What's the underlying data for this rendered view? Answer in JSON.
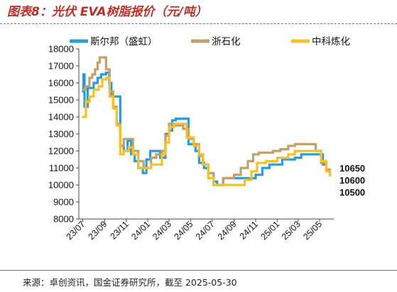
{
  "figure": {
    "title": "图表8：光伏 EVA树脂报价（元/吨）",
    "source": "来源：卓创资讯，国金证券研究所，截至 2025-05-30"
  },
  "chart_data": {
    "type": "line",
    "title": "图表8：光伏 EVA树脂报价（元/吨）",
    "xlabel": "",
    "ylabel": "",
    "ylim": [
      8000,
      18000
    ],
    "y_ticks": [
      8000,
      9000,
      10000,
      11000,
      12000,
      13000,
      14000,
      15000,
      16000,
      17000,
      18000
    ],
    "x_ticks": [
      "23/07",
      "23/09",
      "23/11",
      "24/01",
      "24/03",
      "24/05",
      "24/07",
      "24/09",
      "24/11",
      "25/01",
      "25/03",
      "25/05"
    ],
    "x_range": [
      "2023-06-20",
      "2025-06-10"
    ],
    "legend_position": "top",
    "grid": false,
    "step": true,
    "series": [
      {
        "name": "斯尔邦（盛虹）",
        "color": "#2E9BD6",
        "points": [
          [
            "2023-06-29",
            15500
          ],
          [
            "2023-07-03",
            16500
          ],
          [
            "2023-07-06",
            14600
          ],
          [
            "2023-07-12",
            14600
          ],
          [
            "2023-07-15",
            15700
          ],
          [
            "2023-08-01",
            16000
          ],
          [
            "2023-08-12",
            16300
          ],
          [
            "2023-08-22",
            16500
          ],
          [
            "2023-09-05",
            16600
          ],
          [
            "2023-09-14",
            16000
          ],
          [
            "2023-09-20",
            15200
          ],
          [
            "2023-10-15",
            12300
          ],
          [
            "2023-10-25",
            12000
          ],
          [
            "2023-11-05",
            12600
          ],
          [
            "2023-11-15",
            11800
          ],
          [
            "2023-11-25",
            11400
          ],
          [
            "2023-12-05",
            11000
          ],
          [
            "2023-12-18",
            10700
          ],
          [
            "2023-12-28",
            11500
          ],
          [
            "2024-01-08",
            12000
          ],
          [
            "2024-02-05",
            11600
          ],
          [
            "2024-02-20",
            13000
          ],
          [
            "2024-03-01",
            13200
          ],
          [
            "2024-03-10",
            13800
          ],
          [
            "2024-03-20",
            13900
          ],
          [
            "2024-04-25",
            12400
          ],
          [
            "2024-05-15",
            12000
          ],
          [
            "2024-05-25",
            11300
          ],
          [
            "2024-06-08",
            11000
          ],
          [
            "2024-06-20",
            10700
          ],
          [
            "2024-07-05",
            10200
          ],
          [
            "2024-07-15",
            10000
          ],
          [
            "2024-08-01",
            10400
          ],
          [
            "2024-11-01",
            10600
          ],
          [
            "2024-11-20",
            11000
          ],
          [
            "2024-12-10",
            11200
          ],
          [
            "2025-01-15",
            11500
          ],
          [
            "2025-02-20",
            11600
          ],
          [
            "2025-03-10",
            11800
          ],
          [
            "2025-04-15",
            11800
          ],
          [
            "2025-05-10",
            11200
          ],
          [
            "2025-05-20",
            10900
          ],
          [
            "2025-05-30",
            10650
          ]
        ]
      },
      {
        "name": "浙石化",
        "color": "#C0A06B",
        "points": [
          [
            "2023-06-29",
            15600
          ],
          [
            "2023-07-08",
            15800
          ],
          [
            "2023-07-20",
            16300
          ],
          [
            "2023-07-28",
            16500
          ],
          [
            "2023-08-05",
            16800
          ],
          [
            "2023-08-12",
            17200
          ],
          [
            "2023-08-18",
            17500
          ],
          [
            "2023-09-05",
            16800
          ],
          [
            "2023-09-15",
            15500
          ],
          [
            "2023-09-25",
            14600
          ],
          [
            "2023-10-05",
            13600
          ],
          [
            "2023-10-15",
            12300
          ],
          [
            "2023-10-25",
            12700
          ],
          [
            "2023-11-10",
            12700
          ],
          [
            "2023-11-20",
            12000
          ],
          [
            "2023-12-05",
            11400
          ],
          [
            "2023-12-20",
            11000
          ],
          [
            "2024-01-10",
            11600
          ],
          [
            "2024-01-25",
            11800
          ],
          [
            "2024-02-10",
            12000
          ],
          [
            "2024-02-20",
            12900
          ],
          [
            "2024-03-01",
            13600
          ],
          [
            "2024-03-15",
            13500
          ],
          [
            "2024-04-10",
            13300
          ],
          [
            "2024-04-25",
            12700
          ],
          [
            "2024-05-10",
            12400
          ],
          [
            "2024-05-25",
            11700
          ],
          [
            "2024-06-05",
            11200
          ],
          [
            "2024-06-20",
            10700
          ],
          [
            "2024-07-05",
            10000
          ],
          [
            "2024-08-01",
            10400
          ],
          [
            "2024-09-01",
            10600
          ],
          [
            "2024-09-20",
            11000
          ],
          [
            "2024-10-10",
            11400
          ],
          [
            "2024-10-25",
            11800
          ],
          [
            "2024-11-10",
            11900
          ],
          [
            "2024-12-20",
            12000
          ],
          [
            "2025-01-10",
            12100
          ],
          [
            "2025-02-01",
            12300
          ],
          [
            "2025-02-20",
            12400
          ],
          [
            "2025-04-10",
            12400
          ],
          [
            "2025-04-20",
            12000
          ],
          [
            "2025-05-05",
            11300
          ],
          [
            "2025-05-20",
            10900
          ],
          [
            "2025-05-30",
            10600
          ]
        ]
      },
      {
        "name": "中科炼化",
        "color": "#F5C028",
        "points": [
          [
            "2023-06-29",
            14000
          ],
          [
            "2023-07-10",
            14900
          ],
          [
            "2023-07-20",
            15200
          ],
          [
            "2023-08-01",
            15600
          ],
          [
            "2023-08-15",
            15800
          ],
          [
            "2023-08-25",
            16200
          ],
          [
            "2023-09-05",
            16300
          ],
          [
            "2023-09-15",
            15200
          ],
          [
            "2023-09-25",
            14500
          ],
          [
            "2023-10-05",
            13500
          ],
          [
            "2023-10-15",
            11800
          ],
          [
            "2023-10-25",
            12000
          ],
          [
            "2023-11-08",
            12200
          ],
          [
            "2023-11-20",
            11800
          ],
          [
            "2023-12-05",
            11000
          ],
          [
            "2024-01-10",
            11200
          ],
          [
            "2024-02-10",
            11800
          ],
          [
            "2024-02-20",
            12500
          ],
          [
            "2024-03-01",
            13400
          ],
          [
            "2024-03-15",
            13600
          ],
          [
            "2024-04-20",
            12800
          ],
          [
            "2024-05-10",
            12300
          ],
          [
            "2024-05-25",
            11800
          ],
          [
            "2024-06-05",
            11200
          ],
          [
            "2024-06-20",
            10400
          ],
          [
            "2024-07-05",
            10000
          ],
          [
            "2024-10-01",
            10300
          ],
          [
            "2024-10-20",
            10800
          ],
          [
            "2024-11-05",
            11300
          ],
          [
            "2024-12-01",
            11400
          ],
          [
            "2025-01-01",
            11600
          ],
          [
            "2025-02-01",
            11800
          ],
          [
            "2025-02-20",
            12000
          ],
          [
            "2025-04-20",
            12000
          ],
          [
            "2025-05-05",
            11400
          ],
          [
            "2025-05-20",
            10800
          ],
          [
            "2025-05-30",
            10500
          ]
        ]
      }
    ],
    "end_labels": [
      "10650",
      "10600",
      "10500"
    ]
  }
}
